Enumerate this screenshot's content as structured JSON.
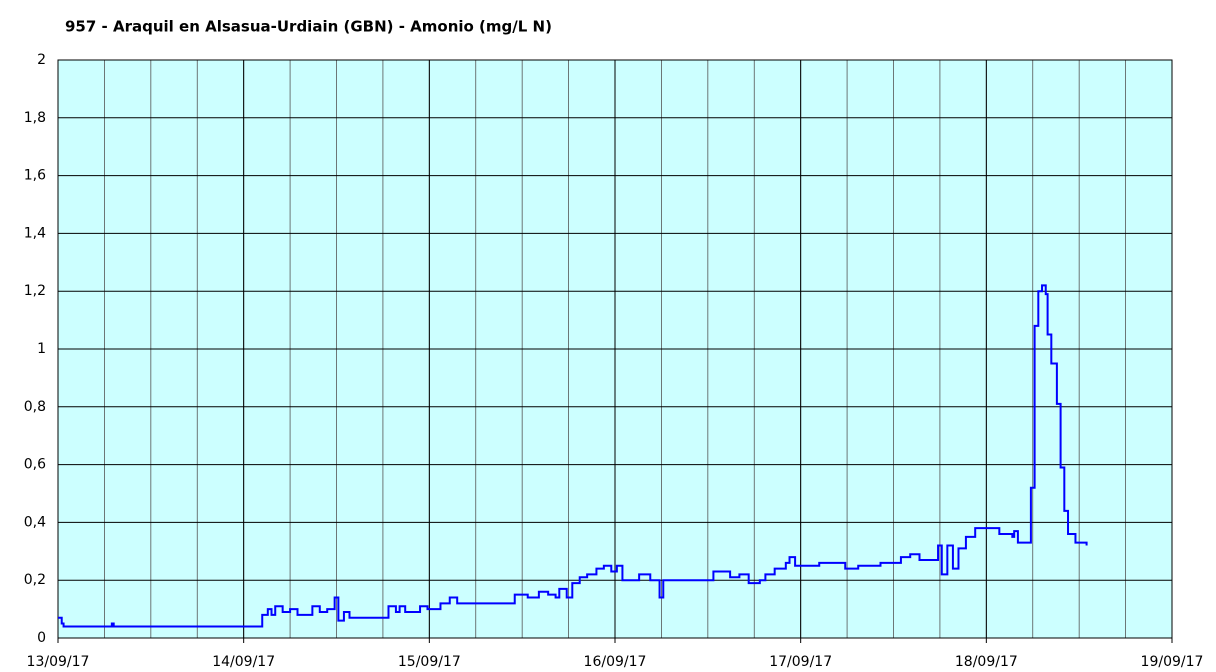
{
  "chart_data": {
    "type": "line",
    "title": "957 - Araquil en Alsasua-Urdiain (GBN) - Amonio (mg/L N)",
    "series": [
      {
        "name": "Amonio",
        "color": "#0000ff",
        "x": [
          0,
          0.02,
          0.03,
          0.28,
          0.29,
          0.3,
          1.08,
          1.1,
          1.13,
          1.15,
          1.17,
          1.21,
          1.25,
          1.29,
          1.37,
          1.41,
          1.45,
          1.49,
          1.51,
          1.54,
          1.57,
          1.76,
          1.78,
          1.82,
          1.84,
          1.87,
          1.95,
          1.99,
          2.06,
          2.11,
          2.15,
          2.43,
          2.46,
          2.53,
          2.59,
          2.64,
          2.68,
          2.7,
          2.74,
          2.77,
          2.81,
          2.85,
          2.9,
          2.94,
          2.98,
          3.01,
          3.04,
          3.13,
          3.19,
          3.23,
          3.24,
          3.26,
          3.51,
          3.53,
          3.62,
          3.67,
          3.72,
          3.78,
          3.81,
          3.86,
          3.92,
          3.94,
          3.97,
          4.1,
          4.24,
          4.31,
          4.43,
          4.54,
          4.59,
          4.64,
          4.7,
          4.74,
          4.76,
          4.79,
          4.82,
          4.85,
          4.89,
          4.94,
          5.02,
          5.07,
          5.14,
          5.15,
          5.17,
          5.22,
          5.24,
          5.26,
          5.28,
          5.3,
          5.32,
          5.33,
          5.35,
          5.38,
          5.4,
          5.42,
          5.44,
          5.48,
          5.54
        ],
        "values": [
          0.07,
          0.05,
          0.04,
          0.04,
          0.05,
          0.04,
          0.04,
          0.08,
          0.1,
          0.08,
          0.11,
          0.09,
          0.1,
          0.08,
          0.11,
          0.09,
          0.1,
          0.14,
          0.06,
          0.09,
          0.07,
          0.07,
          0.11,
          0.09,
          0.11,
          0.09,
          0.11,
          0.1,
          0.12,
          0.14,
          0.12,
          0.12,
          0.15,
          0.14,
          0.16,
          0.15,
          0.14,
          0.17,
          0.14,
          0.19,
          0.21,
          0.22,
          0.24,
          0.25,
          0.23,
          0.25,
          0.2,
          0.22,
          0.2,
          0.2,
          0.14,
          0.2,
          0.2,
          0.23,
          0.21,
          0.22,
          0.19,
          0.2,
          0.22,
          0.24,
          0.26,
          0.28,
          0.25,
          0.26,
          0.24,
          0.25,
          0.26,
          0.28,
          0.29,
          0.27,
          0.27,
          0.32,
          0.22,
          0.32,
          0.24,
          0.31,
          0.35,
          0.38,
          0.38,
          0.36,
          0.35,
          0.37,
          0.33,
          0.33,
          0.52,
          1.08,
          1.2,
          1.22,
          1.19,
          1.05,
          0.95,
          0.81,
          0.59,
          0.44,
          0.36,
          0.33,
          0.32
        ]
      }
    ],
    "drawstyle": "steps",
    "xlim": [
      0,
      6
    ],
    "xticks": [
      {
        "value": 0,
        "label": "13/09/17"
      },
      {
        "value": 1,
        "label": "14/09/17"
      },
      {
        "value": 2,
        "label": "15/09/17"
      },
      {
        "value": 3,
        "label": "16/09/17"
      },
      {
        "value": 4,
        "label": "17/09/17"
      },
      {
        "value": 5,
        "label": "18/09/17"
      },
      {
        "value": 6,
        "label": "19/09/17"
      }
    ],
    "minor_x_step": 0.25,
    "ylim": [
      0,
      2
    ],
    "yticks": [
      0,
      {
        "value": 0.2,
        "label": "0,2"
      },
      {
        "value": 0.4,
        "label": "0,4"
      },
      {
        "value": 0.6,
        "label": "0,6"
      },
      {
        "value": 0.8,
        "label": "0,8"
      },
      1,
      {
        "value": 1.2,
        "label": "1,2"
      },
      {
        "value": 1.4,
        "label": "1,4"
      },
      {
        "value": 1.6,
        "label": "1,6"
      },
      {
        "value": 1.8,
        "label": "1,8"
      },
      2
    ],
    "grid": true,
    "background": "#ccffff"
  }
}
